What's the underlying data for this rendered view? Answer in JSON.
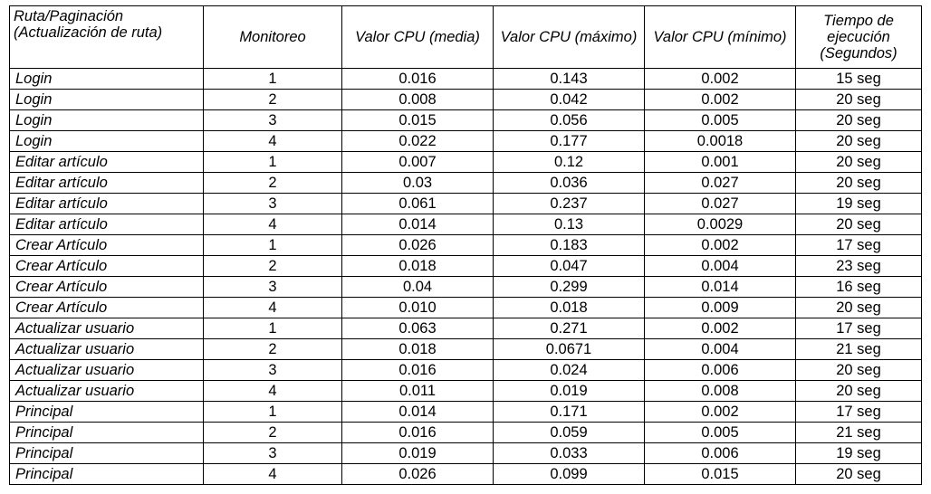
{
  "table": {
    "headers": [
      "Ruta/Paginación (Actualización de ruta)",
      "Monitoreo",
      "Valor CPU (media)",
      "Valor CPU (máximo)",
      "Valor CPU (mínimo)",
      "Tiempo de ejecución (Segundos)"
    ],
    "rows": [
      [
        "Login",
        "1",
        "0.016",
        "0.143",
        "0.002",
        "15 seg"
      ],
      [
        "Login",
        "2",
        "0.008",
        "0.042",
        "0.002",
        "20 seg"
      ],
      [
        "Login",
        "3",
        "0.015",
        "0.056",
        "0.005",
        "20 seg"
      ],
      [
        "Login",
        "4",
        "0.022",
        "0.177",
        "0.0018",
        "20 seg"
      ],
      [
        "Editar artículo",
        "1",
        "0.007",
        "0.12",
        "0.001",
        "20 seg"
      ],
      [
        "Editar artículo",
        "2",
        "0.03",
        "0.036",
        "0.027",
        "20 seg"
      ],
      [
        "Editar artículo",
        "3",
        "0.061",
        "0.237",
        "0.027",
        "19 seg"
      ],
      [
        "Editar artículo",
        "4",
        "0.014",
        "0.13",
        "0.0029",
        "20 seg"
      ],
      [
        "Crear Artículo",
        "1",
        "0.026",
        "0.183",
        "0.002",
        "17 seg"
      ],
      [
        "Crear Artículo",
        "2",
        "0.018",
        "0.047",
        "0.004",
        "23 seg"
      ],
      [
        "Crear Artículo",
        "3",
        "0.04",
        "0.299",
        "0.014",
        "16 seg"
      ],
      [
        "Crear Artículo",
        "4",
        "0.010",
        "0.018",
        "0.009",
        "20 seg"
      ],
      [
        "Actualizar usuario",
        "1",
        "0.063",
        "0.271",
        "0.002",
        "17 seg"
      ],
      [
        "Actualizar usuario",
        "2",
        "0.018",
        "0.0671",
        "0.004",
        "21 seg"
      ],
      [
        "Actualizar usuario",
        "3",
        "0.016",
        "0.024",
        "0.006",
        "20 seg"
      ],
      [
        "Actualizar usuario",
        "4",
        "0.011",
        "0.019",
        "0.008",
        "20 seg"
      ],
      [
        "Principal",
        "1",
        "0.014",
        "0.171",
        "0.002",
        "17 seg"
      ],
      [
        "Principal",
        "2",
        "0.016",
        "0.059",
        "0.005",
        "21 seg"
      ],
      [
        "Principal",
        "3",
        "0.019",
        "0.033",
        "0.006",
        "19 seg"
      ],
      [
        "Principal",
        "4",
        "0.026",
        "0.099",
        "0.015",
        "20 seg"
      ]
    ]
  }
}
